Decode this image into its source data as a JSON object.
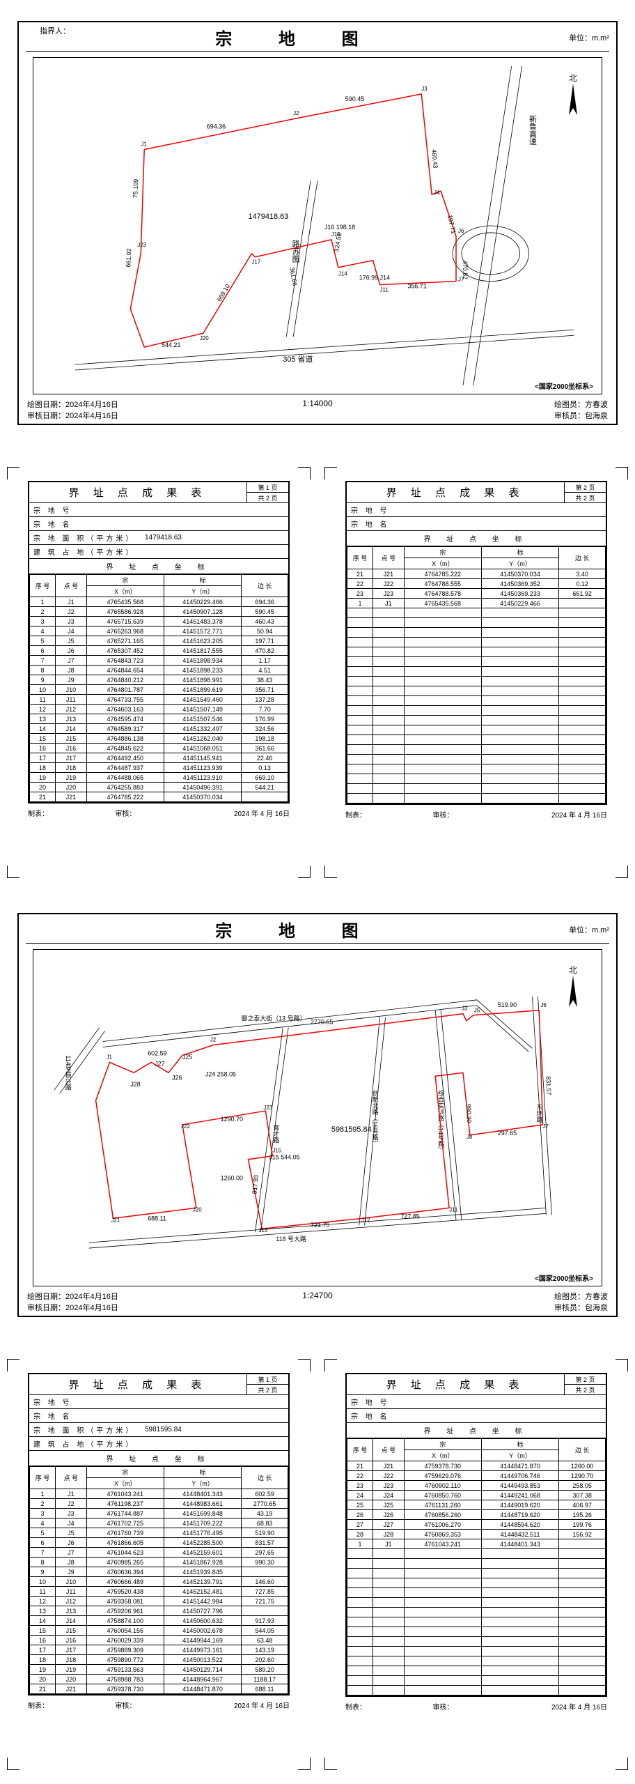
{
  "map_title": "宗  地  图",
  "unit_label": "单位：m.m²",
  "signer_label": "指界人：",
  "crs_label": "<国家2000坐标系>",
  "north_char": "北",
  "footer_labels": {
    "draw_date": "绘图日期：",
    "check_date": "审核日期：",
    "drawer": "绘图员：",
    "checker": "审核员："
  },
  "people": {
    "drawer": "方春波",
    "checker": "包海泉"
  },
  "result_table_title": "界 址 点 成 果 表",
  "result_table_labels": {
    "parcel_no": "宗 地 号",
    "parcel_name": "宗 地 名",
    "parcel_area": "宗 地 面 积（平方米）",
    "building_area": "建 筑 占 地（平方米）",
    "coord_section": "界 址 点 坐 标",
    "seq": "序 号",
    "point": "点 号",
    "x_group": "宗",
    "y_group": "标",
    "x": "X（m）",
    "y": "Y（m）",
    "edge": "边 长"
  },
  "page_labels": {
    "page_prefix": "第",
    "page_suffix": "页",
    "total_prefix": "共",
    "total_suffix": "页"
  },
  "table_footer": {
    "maker": "制表：",
    "checker": "审核：",
    "date": "2024 年 4 月 16日"
  },
  "parcel1": {
    "scale": "1:14000",
    "date": "2024年4月16日",
    "area": "1479418.63",
    "roads": {
      "south": "305 省道",
      "east_expy": "新鲁高速",
      "inner": "路苏图"
    },
    "points": [
      {
        "seq": 1,
        "id": "J1",
        "x": "4765435.568",
        "y": "41450229.466",
        "edge": "694.36"
      },
      {
        "seq": 2,
        "id": "J2",
        "x": "4765586.928",
        "y": "41450907.128",
        "edge": "590.45"
      },
      {
        "seq": 3,
        "id": "J3",
        "x": "4765715.639",
        "y": "41451483.378",
        "edge": "460.43"
      },
      {
        "seq": 4,
        "id": "J4",
        "x": "4765263.968",
        "y": "41451572.771",
        "edge": "50.94"
      },
      {
        "seq": 5,
        "id": "J5",
        "x": "4765271.165",
        "y": "41451623.205",
        "edge": "197.71"
      },
      {
        "seq": 6,
        "id": "J6",
        "x": "4765307.452",
        "y": "41451817.555",
        "edge": "470.82"
      },
      {
        "seq": 7,
        "id": "J7",
        "x": "4764843.723",
        "y": "41451898.934",
        "edge": "1.17"
      },
      {
        "seq": 8,
        "id": "J8",
        "x": "4764844.654",
        "y": "41451898.233",
        "edge": "4.51"
      },
      {
        "seq": 9,
        "id": "J9",
        "x": "4764840.212",
        "y": "41451898.991",
        "edge": "38.43"
      },
      {
        "seq": 10,
        "id": "J10",
        "x": "4764801.787",
        "y": "41451899.619",
        "edge": "356.71"
      },
      {
        "seq": 11,
        "id": "J11",
        "x": "4764733.755",
        "y": "41451549.460",
        "edge": "137.28"
      },
      {
        "seq": 12,
        "id": "J12",
        "x": "4764603.163",
        "y": "41451507.149",
        "edge": "7.70"
      },
      {
        "seq": 13,
        "id": "J13",
        "x": "4764595.474",
        "y": "41451507.546",
        "edge": "176.99"
      },
      {
        "seq": 14,
        "id": "J14",
        "x": "4764589.317",
        "y": "41451332.497",
        "edge": "324.56"
      },
      {
        "seq": 15,
        "id": "J15",
        "x": "4764886.138",
        "y": "41451262.040",
        "edge": "198.18"
      },
      {
        "seq": 16,
        "id": "J16",
        "x": "4764845.622",
        "y": "41451068.051",
        "edge": "361.66"
      },
      {
        "seq": 17,
        "id": "J17",
        "x": "4764492.450",
        "y": "41451145.941",
        "edge": "22.46"
      },
      {
        "seq": 18,
        "id": "J18",
        "x": "4764487.937",
        "y": "41451123.939",
        "edge": "0.13"
      },
      {
        "seq": 19,
        "id": "J19",
        "x": "4764488.065",
        "y": "41451123.910",
        "edge": "669.10"
      },
      {
        "seq": 20,
        "id": "J20",
        "x": "4764255.883",
        "y": "41450496.391",
        "edge": "544.21"
      },
      {
        "seq": 21,
        "id": "J21",
        "x": "4764785.222",
        "y": "41450370.034",
        "edge": ""
      }
    ],
    "points_p2": [
      {
        "seq": 21,
        "id": "J21",
        "x": "4764785.222",
        "y": "41450370.034",
        "edge": "3.40"
      },
      {
        "seq": 22,
        "id": "J22",
        "x": "4764788.555",
        "y": "41450369.352",
        "edge": "0.12"
      },
      {
        "seq": 23,
        "id": "J23",
        "x": "4764788.578",
        "y": "41450369.233",
        "edge": "661.92"
      },
      {
        "seq": 1,
        "id": "J1",
        "x": "4765435.568",
        "y": "41450229.466",
        "edge": ""
      }
    ]
  },
  "parcel2": {
    "scale": "1:24700",
    "date": "2024年4月16日",
    "area": "5981595.84",
    "roads": {
      "north": "御之泰大街（13 号路）",
      "south": "118 号大路",
      "west": "114号振兴路",
      "mid_v1": "育才路",
      "mid_v2": "创新北路（16号路）",
      "mid_v3": "综合实训路（14号路）",
      "east": "东环路"
    },
    "points": [
      {
        "seq": 1,
        "id": "J1",
        "x": "4761043.241",
        "y": "41448401.343",
        "edge": "602.59"
      },
      {
        "seq": 2,
        "id": "J2",
        "x": "4761198.237",
        "y": "41448983.661",
        "edge": "2770.65"
      },
      {
        "seq": 3,
        "id": "J3",
        "x": "4761744.887",
        "y": "41451699.848",
        "edge": "43.19"
      },
      {
        "seq": 4,
        "id": "J4",
        "x": "4761702.725",
        "y": "41451709.222",
        "edge": "68.83"
      },
      {
        "seq": 5,
        "id": "J5",
        "x": "4761760.739",
        "y": "41451776.495",
        "edge": "519.90"
      },
      {
        "seq": 6,
        "id": "J6",
        "x": "4761866.605",
        "y": "41452285.500",
        "edge": "831.57"
      },
      {
        "seq": 7,
        "id": "J7",
        "x": "4761044.623",
        "y": "41452159.601",
        "edge": "297.65"
      },
      {
        "seq": 8,
        "id": "J8",
        "x": "4760985.265",
        "y": "41451867.928",
        "edge": "990.30"
      },
      {
        "seq": 9,
        "id": "J9",
        "x": "4760636.394",
        "y": "41451939.845",
        "edge": ""
      },
      {
        "seq": 10,
        "id": "J10",
        "x": "4760666.489",
        "y": "41452139.791",
        "edge": "146.60"
      },
      {
        "seq": 11,
        "id": "J11",
        "x": "4759520.438",
        "y": "41452152.481",
        "edge": "727.85"
      },
      {
        "seq": 12,
        "id": "J12",
        "x": "4759358.081",
        "y": "41451442.984",
        "edge": "721.75"
      },
      {
        "seq": 13,
        "id": "J13",
        "x": "4759206.961",
        "y": "41450727.796",
        "edge": ""
      },
      {
        "seq": 14,
        "id": "J14",
        "x": "4758874.100",
        "y": "41450600.632",
        "edge": "917.93"
      },
      {
        "seq": 15,
        "id": "J15",
        "x": "4760054.156",
        "y": "41450002.678",
        "edge": "544.05"
      },
      {
        "seq": 16,
        "id": "J16",
        "x": "4760029.339",
        "y": "41449944.169",
        "edge": "63.48"
      },
      {
        "seq": 17,
        "id": "J17",
        "x": "4759889.309",
        "y": "41449973.161",
        "edge": "143.19"
      },
      {
        "seq": 18,
        "id": "J18",
        "x": "4759890.772",
        "y": "41450013.522",
        "edge": "202.60"
      },
      {
        "seq": 19,
        "id": "J19",
        "x": "4759133.563",
        "y": "41450129.714",
        "edge": "589.20"
      },
      {
        "seq": 20,
        "id": "J20",
        "x": "4758988.783",
        "y": "41448964.967",
        "edge": "1188.17"
      },
      {
        "seq": 21,
        "id": "J21",
        "x": "4759378.730",
        "y": "41448471.870",
        "edge": "688.11"
      }
    ],
    "points_p2": [
      {
        "seq": 21,
        "id": "J21",
        "x": "4759378.730",
        "y": "41448471.870",
        "edge": "1260.00"
      },
      {
        "seq": 22,
        "id": "J22",
        "x": "4759629.076",
        "y": "41449706.746",
        "edge": "1290.70"
      },
      {
        "seq": 23,
        "id": "J23",
        "x": "4760902.110",
        "y": "41449493.853",
        "edge": "258.05"
      },
      {
        "seq": 24,
        "id": "J24",
        "x": "4760850.760",
        "y": "41449241.068",
        "edge": "307.38"
      },
      {
        "seq": 25,
        "id": "J25",
        "x": "4761131.260",
        "y": "41449019.620",
        "edge": "406.97"
      },
      {
        "seq": 26,
        "id": "J26",
        "x": "4760856.260",
        "y": "41448719.620",
        "edge": "195.26"
      },
      {
        "seq": 27,
        "id": "J27",
        "x": "4761006.270",
        "y": "41448594.620",
        "edge": "199.76"
      },
      {
        "seq": 28,
        "id": "J28",
        "x": "4760869.353",
        "y": "41448432.511",
        "edge": "156.92"
      },
      {
        "seq": 1,
        "id": "J1",
        "x": "4761043.241",
        "y": "41448401.343",
        "edge": ""
      }
    ]
  }
}
